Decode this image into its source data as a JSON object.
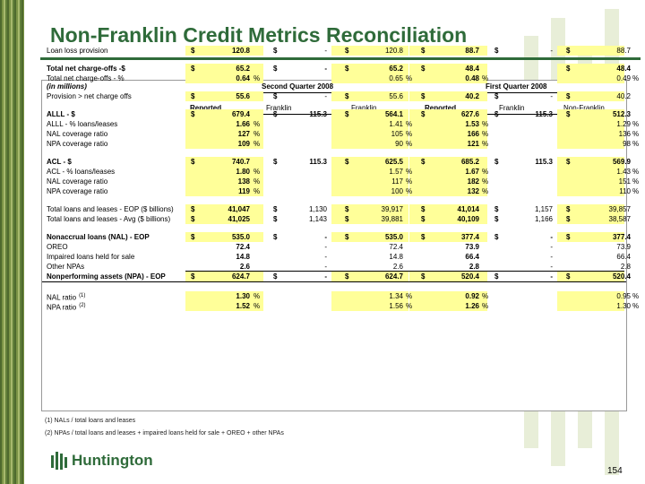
{
  "title": "Non-Franklin Credit Metrics Reconciliation",
  "table": {
    "units": "(in millions)",
    "periods": [
      "Second Quarter 2008",
      "First Quarter 2008"
    ],
    "columns": [
      "Reported",
      "Franklin",
      "Non-Franklin",
      "Reported",
      "Franklin",
      "Non-Franklin"
    ],
    "non_franklin_line1": "Non-",
    "non_franklin_line2": "Franklin",
    "rows": [
      {
        "label": "Loan loss provision",
        "bold": false,
        "d": [
          "$",
          "$",
          "$",
          "$",
          "$",
          "$"
        ],
        "v": [
          "120.8",
          "-",
          "120.8",
          "88.7",
          "-",
          "88.7"
        ],
        "pct": [
          "",
          "",
          "",
          "",
          "",
          ""
        ]
      },
      {
        "label": "Total net charge-offs -$",
        "bold": true,
        "d": [
          "$",
          "$",
          "$",
          "$",
          "",
          "$"
        ],
        "v": [
          "65.2",
          "-",
          "65.2",
          "48.4",
          "",
          "48.4"
        ],
        "pct": [
          "",
          "",
          "",
          "",
          "",
          ""
        ]
      },
      {
        "label": "Total net charge-offs - %",
        "bold": false,
        "d": [
          "",
          "",
          "",
          "",
          "",
          ""
        ],
        "v": [
          "0.64",
          "",
          "0.65",
          "0.48",
          "",
          "0.49"
        ],
        "pct": [
          "%",
          "",
          "%",
          "%",
          "",
          "%"
        ]
      },
      {
        "label": "Provision > net charge offs",
        "bold": false,
        "d": [
          "$",
          "$",
          "$",
          "$",
          "$",
          "$"
        ],
        "v": [
          "55.6",
          "-",
          "55.6",
          "40.2",
          "-",
          "40.2"
        ],
        "pct": [
          "",
          "",
          "",
          "",
          "",
          ""
        ]
      },
      {
        "label": "ALLL - $",
        "bold": true,
        "d": [
          "$",
          "$",
          "$",
          "$",
          "$",
          "$"
        ],
        "v": [
          "679.4",
          "115.3",
          "564.1",
          "627.6",
          "115.3",
          "512.3"
        ],
        "pct": [
          "",
          "",
          "",
          "",
          "",
          ""
        ]
      },
      {
        "label": "ALLL - % loans/leases",
        "bold": false,
        "d": [
          "",
          "",
          "",
          "",
          "",
          ""
        ],
        "v": [
          "1.66",
          "",
          "1.41",
          "1.53",
          "",
          "1.29"
        ],
        "pct": [
          "%",
          "",
          "%",
          "%",
          "",
          "%"
        ]
      },
      {
        "label": "NAL coverage ratio",
        "bold": false,
        "d": [
          "",
          "",
          "",
          "",
          "",
          ""
        ],
        "v": [
          "127",
          "",
          "105",
          "166",
          "",
          "136"
        ],
        "pct": [
          "%",
          "",
          "%",
          "%",
          "",
          "%"
        ]
      },
      {
        "label": "NPA coverage ratio",
        "bold": false,
        "d": [
          "",
          "",
          "",
          "",
          "",
          ""
        ],
        "v": [
          "109",
          "",
          "90",
          "121",
          "",
          "98"
        ],
        "pct": [
          "%",
          "",
          "%",
          "%",
          "",
          "%"
        ]
      },
      {
        "label": "ACL - $",
        "bold": true,
        "d": [
          "$",
          "$",
          "$",
          "$",
          "$",
          "$"
        ],
        "v": [
          "740.7",
          "115.3",
          "625.5",
          "685.2",
          "115.3",
          "569.9"
        ],
        "pct": [
          "",
          "",
          "",
          "",
          "",
          ""
        ]
      },
      {
        "label": "ACL - % loans/leases",
        "bold": false,
        "d": [
          "",
          "",
          "",
          "",
          "",
          ""
        ],
        "v": [
          "1.80",
          "",
          "1.57",
          "1.67",
          "",
          "1.43"
        ],
        "pct": [
          "%",
          "",
          "%",
          "%",
          "",
          "%"
        ]
      },
      {
        "label": "NAL coverage ratio",
        "bold": false,
        "d": [
          "",
          "",
          "",
          "",
          "",
          ""
        ],
        "v": [
          "138",
          "",
          "117",
          "182",
          "",
          "151"
        ],
        "pct": [
          "%",
          "",
          "%",
          "%",
          "",
          "%"
        ]
      },
      {
        "label": "NPA coverage ratio",
        "bold": false,
        "d": [
          "",
          "",
          "",
          "",
          "",
          ""
        ],
        "v": [
          "119",
          "",
          "100",
          "132",
          "",
          "110"
        ],
        "pct": [
          "%",
          "",
          "%",
          "%",
          "",
          "%"
        ]
      },
      {
        "label": "Total loans and leases - EOP ($ billions)",
        "bold": false,
        "d": [
          "$",
          "$",
          "$",
          "$",
          "$",
          "$"
        ],
        "v": [
          "41,047",
          "1,130",
          "39,917",
          "41,014",
          "1,157",
          "39,857"
        ],
        "pct": [
          "",
          "",
          "",
          "",
          "",
          ""
        ]
      },
      {
        "label": "Total loans and leases - Avg ($ billions)",
        "bold": false,
        "d": [
          "$",
          "$",
          "$",
          "$",
          "$",
          "$"
        ],
        "v": [
          "41,025",
          "1,143",
          "39,881",
          "40,109",
          "1,166",
          "38,587"
        ],
        "pct": [
          "",
          "",
          "",
          "",
          "",
          ""
        ]
      },
      {
        "label": "Nonaccrual loans (NAL) - EOP",
        "bold": true,
        "d": [
          "$",
          "$",
          "$",
          "$",
          "$",
          "$"
        ],
        "v": [
          "535.0",
          "-",
          "535.0",
          "377.4",
          "-",
          "377.4"
        ],
        "pct": [
          "",
          "",
          "",
          "",
          "",
          ""
        ]
      },
      {
        "label": "OREO",
        "bold": false,
        "d": [
          "",
          "",
          "",
          "",
          "",
          ""
        ],
        "v": [
          "72.4",
          "-",
          "72.4",
          "73.9",
          "-",
          "73.9"
        ],
        "pct": [
          "",
          "",
          "",
          "",
          "",
          ""
        ]
      },
      {
        "label": "Impaired loans held for sale",
        "bold": false,
        "d": [
          "",
          "",
          "",
          "",
          "",
          ""
        ],
        "v": [
          "14.8",
          "-",
          "14.8",
          "66.4",
          "-",
          "66.4"
        ],
        "pct": [
          "",
          "",
          "",
          "",
          "",
          ""
        ]
      },
      {
        "label": "Other NPAs",
        "bold": false,
        "d": [
          "",
          "",
          "",
          "",
          "",
          ""
        ],
        "v": [
          "2.6",
          "-",
          "2.6",
          "2.8",
          "-",
          "2.8"
        ],
        "pct": [
          "",
          "",
          "",
          "",
          "",
          ""
        ]
      },
      {
        "label": "Nonperforming assets (NPA) - EOP",
        "bold": true,
        "d": [
          "$",
          "$",
          "$",
          "$",
          "$",
          "$"
        ],
        "v": [
          "624.7",
          "-",
          "624.7",
          "520.4",
          "-",
          "520.4"
        ],
        "pct": [
          "",
          "",
          "",
          "",
          "",
          ""
        ]
      },
      {
        "label": "NAL ratio",
        "sup": "(1)",
        "bold": false,
        "d": [
          "",
          "",
          "",
          "",
          "",
          ""
        ],
        "v": [
          "1.30",
          "",
          "1.34",
          "0.92",
          "",
          "0.95"
        ],
        "pct": [
          "%",
          "",
          "%",
          "%",
          "",
          "%"
        ]
      },
      {
        "label": "NPA ratio",
        "sup": "(2)",
        "bold": false,
        "d": [
          "",
          "",
          "",
          "",
          "",
          ""
        ],
        "v": [
          "1.52",
          "",
          "1.56",
          "1.26",
          "",
          "1.30"
        ],
        "pct": [
          "%",
          "",
          "%",
          "%",
          "",
          "%"
        ]
      }
    ]
  },
  "footnotes": [
    "(1) NALs / total loans and leases",
    "(2) NPAs / total loans and leases + impaired loans held for sale + OREO + other NPAs"
  ],
  "logo_text": "Huntington",
  "page_number": "154",
  "colors": {
    "brand_green": "#2f6b3a",
    "highlight": "#ffff99"
  }
}
